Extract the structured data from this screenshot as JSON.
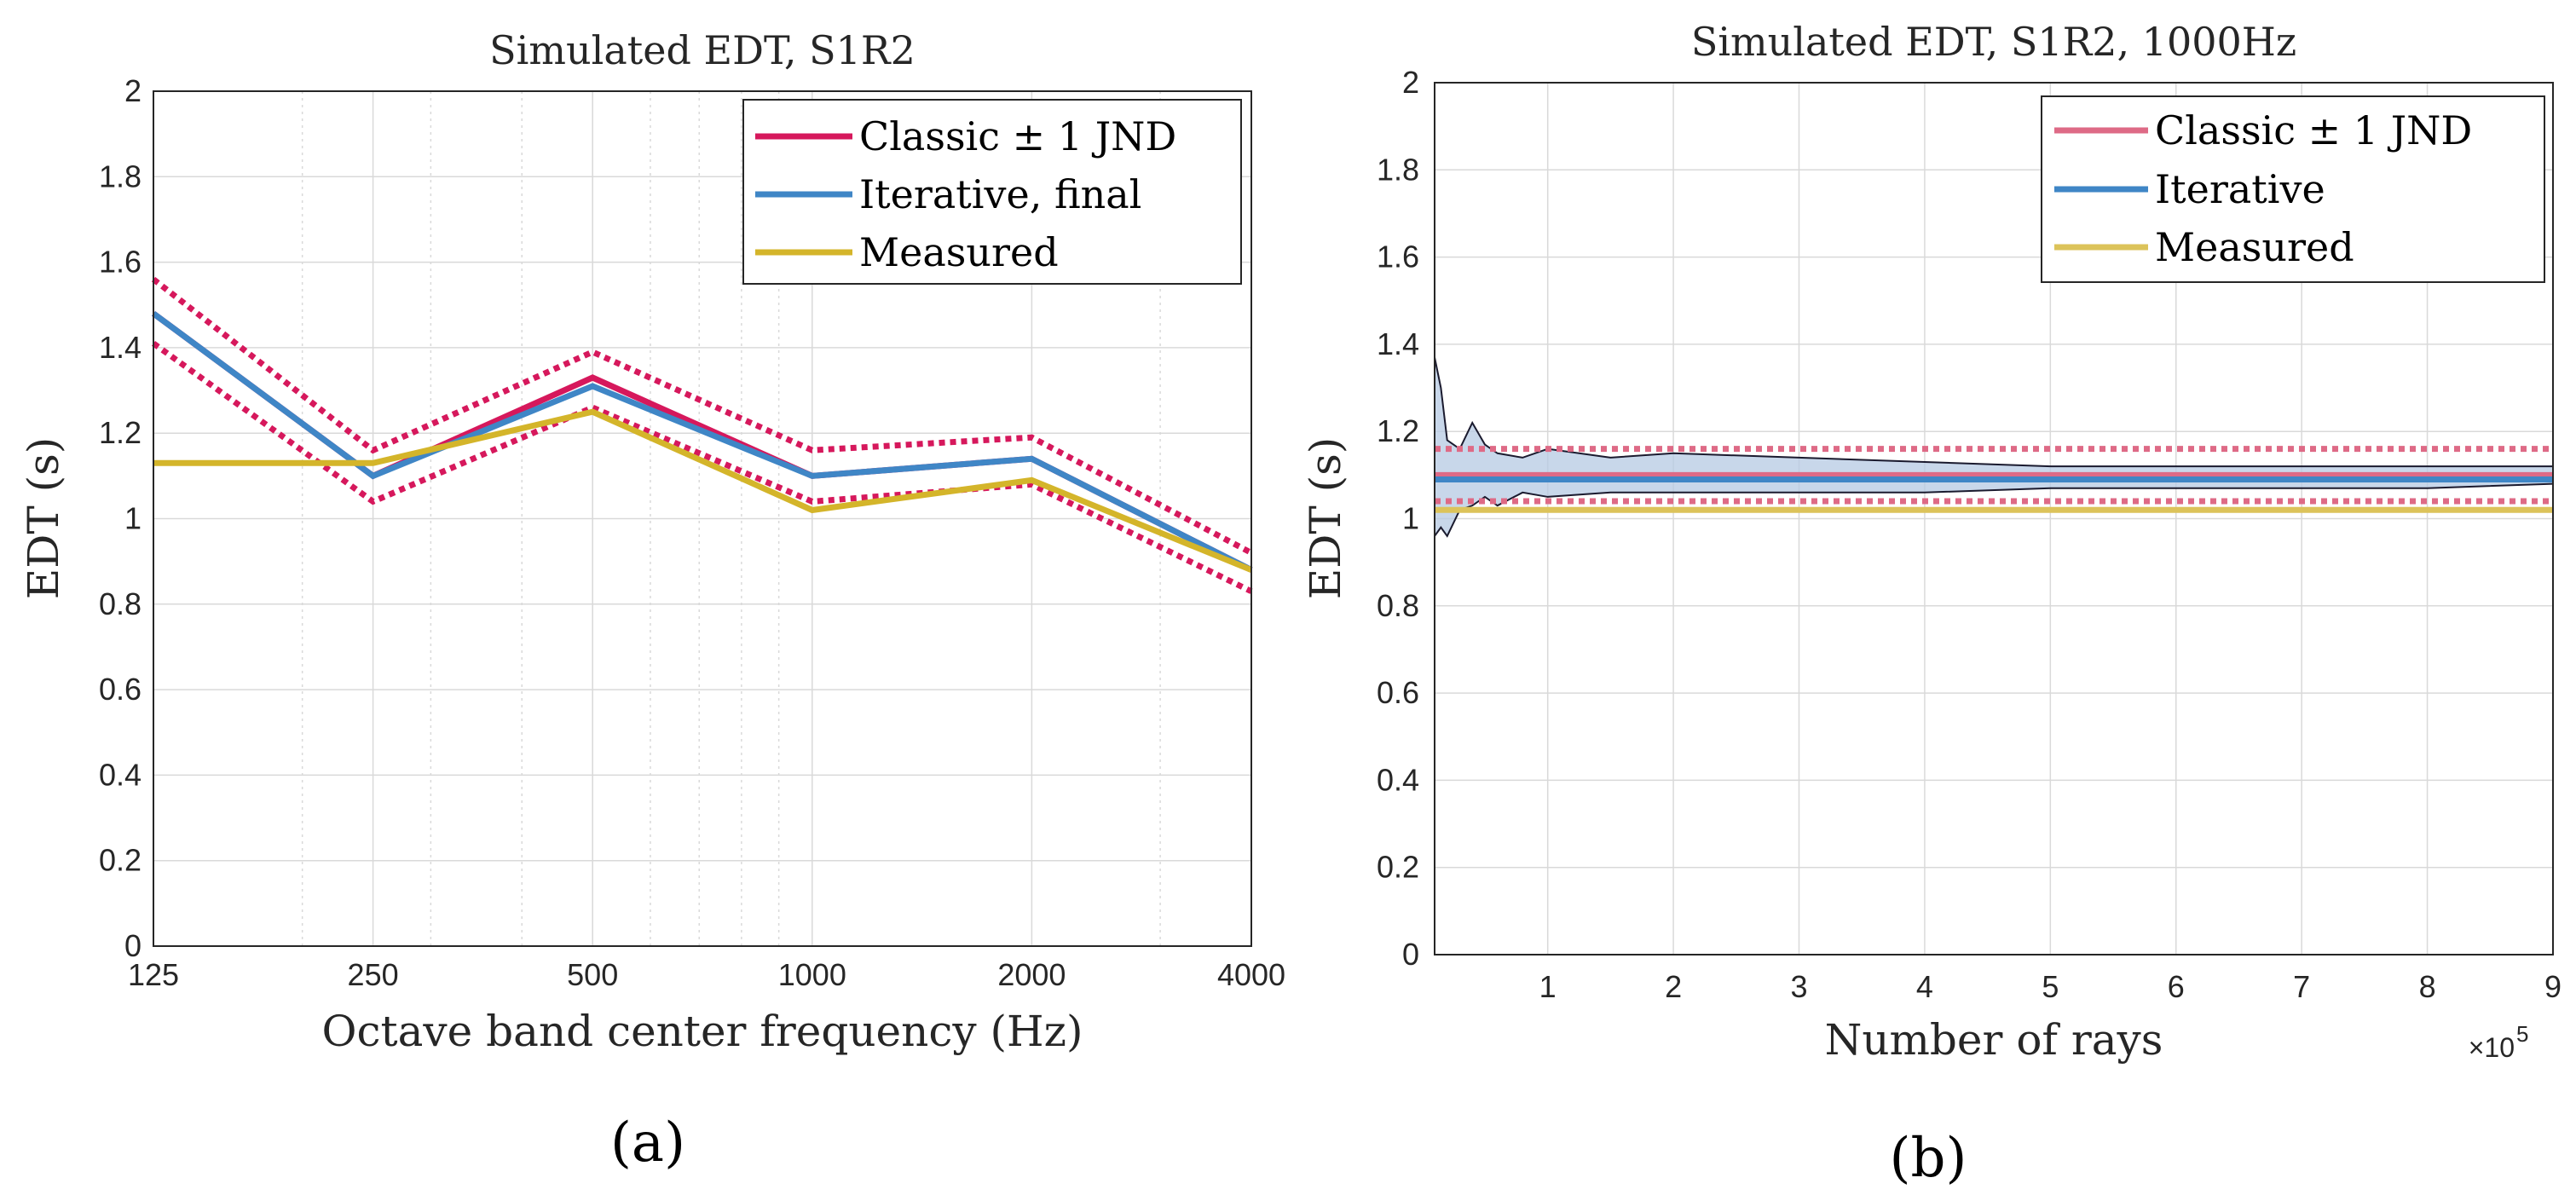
{
  "colors": {
    "classic": "#d6185c",
    "classic_b": "#de6a86",
    "iterative": "#3f86c6",
    "measured": "#d4b52a",
    "measured_b": "#dcc35a",
    "band_fill": "#b5c9e3",
    "grid": "#d9d9d9",
    "axis": "#262626"
  },
  "chart_data": [
    {
      "id": "a",
      "type": "line",
      "title": "Simulated EDT, S1R2",
      "xlabel": "Octave band center frequency (Hz)",
      "ylabel": "EDT (s)",
      "xscale": "log",
      "xlim": [
        125,
        4000
      ],
      "ylim": [
        0,
        2
      ],
      "xticks": [
        125,
        250,
        500,
        1000,
        2000,
        4000
      ],
      "xtick_labels": [
        "125",
        "250",
        "500",
        "1000",
        "2000",
        "4000"
      ],
      "yticks": [
        0,
        0.2,
        0.4,
        0.6,
        0.8,
        1,
        1.2,
        1.4,
        1.6,
        1.8,
        2
      ],
      "ytick_labels": [
        "0",
        "0.2",
        "0.4",
        "0.6",
        "0.8",
        "1",
        "1.2",
        "1.4",
        "1.6",
        "1.8",
        "2"
      ],
      "x": [
        125,
        250,
        500,
        1000,
        2000,
        4000
      ],
      "series": [
        {
          "name": "Classic ± 1 JND",
          "values": [
            1.48,
            1.1,
            1.33,
            1.1,
            1.14,
            0.88
          ],
          "color_key": "classic",
          "jnd_upper": [
            1.56,
            1.16,
            1.39,
            1.16,
            1.19,
            0.92
          ],
          "jnd_lower": [
            1.41,
            1.04,
            1.26,
            1.04,
            1.08,
            0.83
          ]
        },
        {
          "name": "Iterative, final",
          "values": [
            1.48,
            1.1,
            1.31,
            1.1,
            1.14,
            0.88
          ],
          "color_key": "iterative"
        },
        {
          "name": "Measured",
          "values": [
            1.13,
            1.13,
            1.25,
            1.02,
            1.09,
            0.88
          ],
          "color_key": "measured"
        }
      ],
      "legend": "top-right",
      "grid": true,
      "caption": "(a)"
    },
    {
      "id": "b",
      "type": "line",
      "title": "Simulated EDT, S1R2, 1000Hz",
      "xlabel": "Number of rays",
      "ylabel": "EDT (s)",
      "x_multiplier": "×10",
      "x_multiplier_exp": "5",
      "xlim": [
        0.1,
        9
      ],
      "ylim": [
        0,
        2
      ],
      "xticks": [
        1,
        2,
        3,
        4,
        5,
        6,
        7,
        8,
        9
      ],
      "xtick_labels": [
        "1",
        "2",
        "3",
        "4",
        "5",
        "6",
        "7",
        "8",
        "9"
      ],
      "yticks": [
        0,
        0.2,
        0.4,
        0.6,
        0.8,
        1,
        1.2,
        1.4,
        1.6,
        1.8,
        2
      ],
      "ytick_labels": [
        "0",
        "0.2",
        "0.4",
        "0.6",
        "0.8",
        "1",
        "1.2",
        "1.4",
        "1.6",
        "1.8",
        "2"
      ],
      "series": [
        {
          "name": "Classic ± 1 JND",
          "value": 1.1,
          "jnd_upper": 1.16,
          "jnd_lower": 1.04,
          "color_key": "classic_b"
        },
        {
          "name": "Iterative",
          "value": 1.09,
          "color_key": "iterative"
        },
        {
          "name": "Measured",
          "value": 1.02,
          "color_key": "measured_b"
        }
      ],
      "spread_band": {
        "x": [
          0.1,
          0.15,
          0.2,
          0.3,
          0.4,
          0.5,
          0.6,
          0.8,
          1.0,
          1.5,
          2.0,
          3.0,
          4.0,
          5.0,
          6.0,
          7.0,
          8.0,
          9.0
        ],
        "upper": [
          1.37,
          1.3,
          1.18,
          1.16,
          1.22,
          1.17,
          1.15,
          1.14,
          1.16,
          1.14,
          1.15,
          1.14,
          1.13,
          1.12,
          1.12,
          1.12,
          1.12,
          1.12
        ],
        "lower": [
          0.96,
          0.98,
          0.96,
          1.02,
          1.03,
          1.05,
          1.03,
          1.06,
          1.05,
          1.06,
          1.06,
          1.06,
          1.06,
          1.07,
          1.07,
          1.07,
          1.07,
          1.08
        ]
      },
      "legend": "top-right",
      "grid": true,
      "caption": "(b)"
    }
  ]
}
